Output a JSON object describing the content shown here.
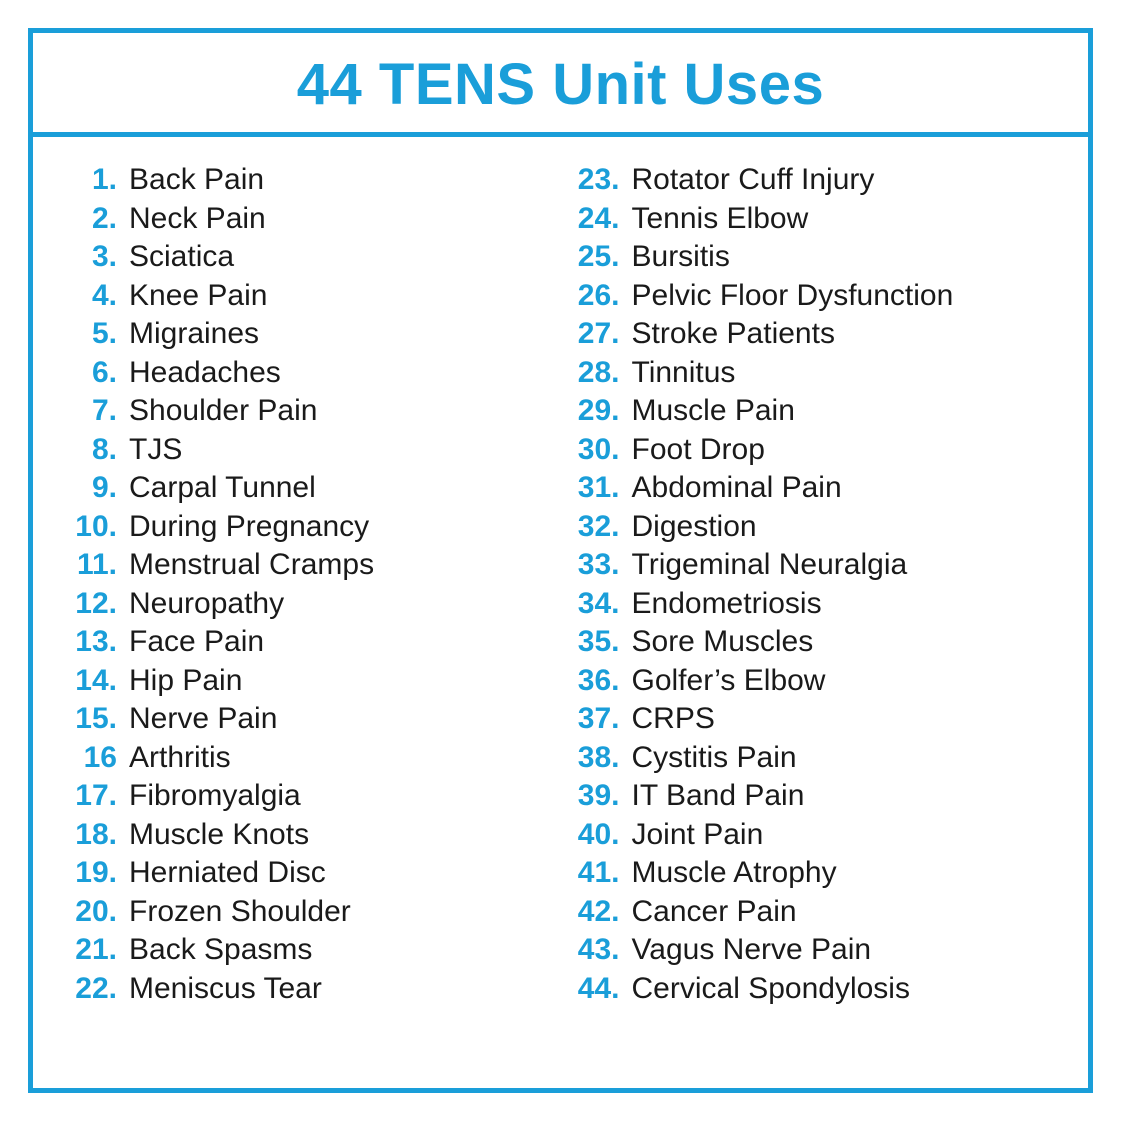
{
  "colors": {
    "accent": "#1a9ed9",
    "text": "#1a1a1a",
    "background": "#ffffff"
  },
  "title": "44 TENS Unit Uses",
  "title_fontsize": 58,
  "item_fontsize": 30,
  "number_fontsize": 30,
  "items_left": [
    {
      "n": "1.",
      "label": "Back Pain"
    },
    {
      "n": "2.",
      "label": "Neck Pain"
    },
    {
      "n": "3.",
      "label": "Sciatica"
    },
    {
      "n": "4.",
      "label": "Knee Pain"
    },
    {
      "n": "5.",
      "label": "Migraines"
    },
    {
      "n": "6.",
      "label": "Headaches"
    },
    {
      "n": "7.",
      "label": "Shoulder Pain"
    },
    {
      "n": "8.",
      "label": "TJS"
    },
    {
      "n": "9.",
      "label": "Carpal Tunnel"
    },
    {
      "n": "10.",
      "label": "During Pregnancy"
    },
    {
      "n": "11.",
      "label": "Menstrual Cramps"
    },
    {
      "n": "12.",
      "label": "Neuropathy"
    },
    {
      "n": "13.",
      "label": "Face Pain"
    },
    {
      "n": "14.",
      "label": "Hip Pain"
    },
    {
      "n": "15.",
      "label": "Nerve Pain"
    },
    {
      "n": "16",
      "label": "Arthritis"
    },
    {
      "n": "17.",
      "label": "Fibromyalgia"
    },
    {
      "n": "18.",
      "label": "Muscle Knots"
    },
    {
      "n": "19.",
      "label": "Herniated Disc"
    },
    {
      "n": "20.",
      "label": "Frozen Shoulder"
    },
    {
      "n": "21.",
      "label": "Back Spasms"
    },
    {
      "n": "22.",
      "label": "Meniscus Tear"
    }
  ],
  "items_right": [
    {
      "n": "23.",
      "label": "Rotator Cuff Injury"
    },
    {
      "n": "24.",
      "label": "Tennis Elbow"
    },
    {
      "n": "25.",
      "label": "Bursitis"
    },
    {
      "n": "26.",
      "label": "Pelvic Floor Dysfunction"
    },
    {
      "n": "27.",
      "label": "Stroke Patients"
    },
    {
      "n": "28.",
      "label": "Tinnitus"
    },
    {
      "n": "29.",
      "label": "Muscle Pain"
    },
    {
      "n": "30.",
      "label": "Foot Drop"
    },
    {
      "n": "31.",
      "label": "Abdominal Pain"
    },
    {
      "n": "32.",
      "label": "Digestion"
    },
    {
      "n": "33.",
      "label": "Trigeminal Neuralgia"
    },
    {
      "n": "34.",
      "label": "Endometriosis"
    },
    {
      "n": "35.",
      "label": "Sore Muscles"
    },
    {
      "n": "36.",
      "label": "Golfer’s Elbow"
    },
    {
      "n": "37.",
      "label": "CRPS"
    },
    {
      "n": "38.",
      "label": "Cystitis Pain"
    },
    {
      "n": "39.",
      "label": "IT Band Pain"
    },
    {
      "n": "40.",
      "label": "Joint Pain"
    },
    {
      "n": "41.",
      "label": "Muscle Atrophy"
    },
    {
      "n": "42.",
      "label": "Cancer Pain"
    },
    {
      "n": "43.",
      "label": "Vagus Nerve Pain"
    },
    {
      "n": "44.",
      "label": "Cervical Spondylosis"
    }
  ]
}
